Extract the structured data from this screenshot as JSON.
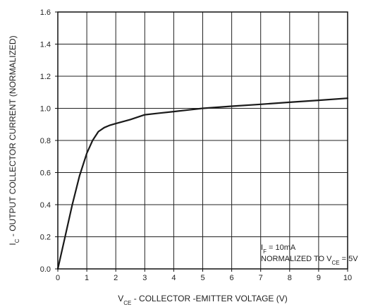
{
  "chart_data": {
    "type": "line",
    "title": "",
    "xlabel": {
      "prefix": "V",
      "sub": "CE",
      "rest": " - COLLECTOR -EMITTER VOLTAGE (V)"
    },
    "ylabel": {
      "prefix": "I",
      "sub": "C",
      "rest": " - OUTPUT COLLECTOR CURRENT (NORMALIZED)"
    },
    "xlim": [
      0,
      10
    ],
    "ylim": [
      0,
      1.6
    ],
    "xticks": [
      "0",
      "1",
      "2",
      "3",
      "4",
      "5",
      "6",
      "7",
      "8",
      "9",
      "10"
    ],
    "yticks": [
      "0.0",
      "0.2",
      "0.4",
      "0.6",
      "0.8",
      "1.0",
      "1.2",
      "1.4",
      "1.6"
    ],
    "grid": true,
    "annotation": {
      "line1": {
        "prefix": "I",
        "sub": "F",
        "rest": " = 10mA"
      },
      "line2": {
        "prefix": "NORMALIZED TO V",
        "sub": "CE",
        "rest": " = 5V"
      }
    },
    "series": [
      {
        "x": [
          0,
          0.25,
          0.5,
          0.75,
          1.0,
          1.2,
          1.4,
          1.6,
          1.8,
          2.0,
          2.5,
          3.0,
          3.5,
          4.0,
          4.5,
          5.0,
          6.0,
          7.0,
          8.0,
          9.0,
          10.0
        ],
        "y": [
          0,
          0.2,
          0.4,
          0.58,
          0.72,
          0.8,
          0.855,
          0.88,
          0.895,
          0.905,
          0.93,
          0.96,
          0.97,
          0.98,
          0.99,
          1.0,
          1.013,
          1.025,
          1.038,
          1.05,
          1.063
        ]
      }
    ],
    "colors": {
      "line": "#1a1a1a",
      "grid": "#222222",
      "frame": "#111111"
    }
  }
}
